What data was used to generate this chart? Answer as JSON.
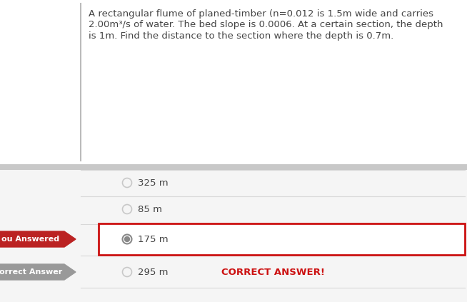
{
  "question_text_line1": "A rectangular flume of planed-timber (n=0.012 is 1.5m wide and carries",
  "question_text_line2": "2.00m³/s of water. The bed slope is 0.0006. At a certain section, the depth",
  "question_text_line3": "is 1m. Find the distance to the section where the depth is 0.7m.",
  "options": [
    "325 m",
    "85 m",
    "175 m",
    "295 m"
  ],
  "you_answered_index": 2,
  "correct_answer_index": 3,
  "correct_answer_text": "CORRECT ANSWER!",
  "you_answered_label": "ou Answered",
  "correct_answer_label": "orrect Answer",
  "bg_color": "#ebebeb",
  "question_bg": "#ffffff",
  "answer_bg": "#f5f5f5",
  "separator_color": "#c8c8c8",
  "option_line_color": "#d8d8d8",
  "selected_border_color": "#cc1111",
  "selected_bg_color": "#ffffff",
  "radio_selected_fill": "#888888",
  "radio_selected_border": "#888888",
  "radio_unselected_color": "#c8c8c8",
  "text_color": "#444444",
  "correct_answer_color": "#cc1111",
  "you_answered_bg": "#bb2222",
  "correct_answer_bg": "#999999",
  "label_text_color": "#ffffff",
  "left_bar_color": "#bbbbbb",
  "question_font_size": 9.5,
  "option_font_size": 9.5,
  "label_font_size": 8.0,
  "correct_font_size": 9.5
}
